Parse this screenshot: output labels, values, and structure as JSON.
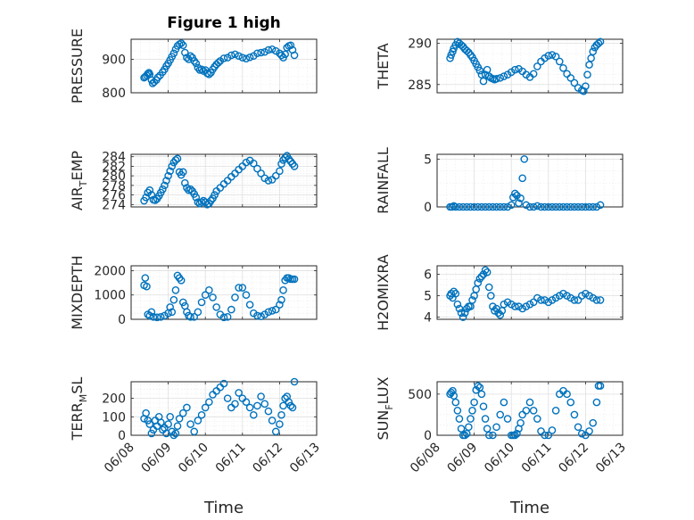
{
  "figure": {
    "title": "Figure 1 high",
    "x_axis_label": "Time",
    "marker_color": "#0072bd",
    "x_tick_labels": [
      "06/08",
      "06/09",
      "06/10",
      "06/11",
      "06/12",
      "06/13"
    ]
  },
  "chart_data": [
    {
      "id": "pressure",
      "type": "scatter",
      "title": "Figure 1 high",
      "ylabel": "PRESSURE",
      "ylabel_sub": "",
      "xlim": [
        0,
        5
      ],
      "ylim": [
        800,
        960
      ],
      "yticks": [
        800,
        900
      ],
      "grid": true,
      "x": [
        0.35,
        0.38,
        0.42,
        0.45,
        0.48,
        0.5,
        0.55,
        0.58,
        0.62,
        0.68,
        0.72,
        0.78,
        0.85,
        0.9,
        0.95,
        1.0,
        1.05,
        1.1,
        1.15,
        1.2,
        1.25,
        1.3,
        1.35,
        1.4,
        1.45,
        1.5,
        1.55,
        1.6,
        1.65,
        1.7,
        1.75,
        1.8,
        1.85,
        1.9,
        1.95,
        2.0,
        2.05,
        2.1,
        2.15,
        2.2,
        2.25,
        2.3,
        2.35,
        2.4,
        2.5,
        2.6,
        2.7,
        2.8,
        2.9,
        3.0,
        3.1,
        3.2,
        3.3,
        3.4,
        3.5,
        3.6,
        3.7,
        3.8,
        3.9,
        4.0,
        4.05,
        4.1,
        4.15,
        4.2,
        4.25,
        4.3,
        4.35,
        4.4
      ],
      "y": [
        845,
        848,
        852,
        857,
        860,
        855,
        838,
        828,
        832,
        838,
        846,
        852,
        862,
        870,
        880,
        888,
        898,
        908,
        918,
        930,
        940,
        945,
        948,
        942,
        920,
        905,
        900,
        910,
        905,
        895,
        888,
        875,
        868,
        870,
        865,
        868,
        858,
        855,
        860,
        870,
        878,
        885,
        890,
        895,
        903,
        905,
        912,
        915,
        910,
        905,
        902,
        906,
        910,
        918,
        920,
        922,
        928,
        930,
        925,
        918,
        912,
        905,
        915,
        935,
        940,
        942,
        928,
        912
      ]
    },
    {
      "id": "theta",
      "type": "scatter",
      "title": "",
      "ylabel": "THETA",
      "ylabel_sub": "",
      "xlim": [
        0,
        5
      ],
      "ylim": [
        284,
        290.5
      ],
      "yticks": [
        285,
        290
      ],
      "grid": true,
      "x": [
        0.35,
        0.38,
        0.42,
        0.45,
        0.5,
        0.55,
        0.6,
        0.65,
        0.7,
        0.75,
        0.8,
        0.85,
        0.9,
        0.95,
        1.0,
        1.05,
        1.1,
        1.15,
        1.2,
        1.25,
        1.3,
        1.35,
        1.4,
        1.45,
        1.5,
        1.55,
        1.6,
        1.7,
        1.8,
        1.9,
        2.0,
        2.1,
        2.2,
        2.3,
        2.4,
        2.5,
        2.6,
        2.7,
        2.8,
        2.9,
        3.0,
        3.1,
        3.2,
        3.3,
        3.4,
        3.5,
        3.6,
        3.7,
        3.8,
        3.9,
        3.95,
        4.0,
        4.05,
        4.1,
        4.15,
        4.2,
        4.25,
        4.3,
        4.35,
        4.4
      ],
      "y": [
        288.2,
        288.6,
        289.0,
        289.4,
        289.8,
        290.2,
        290.0,
        289.8,
        289.6,
        289.3,
        289.1,
        288.9,
        288.6,
        288.3,
        287.9,
        287.5,
        287.1,
        286.7,
        286.2,
        285.4,
        286.2,
        286.8,
        286.0,
        285.8,
        285.7,
        285.6,
        285.7,
        285.8,
        286.0,
        286.2,
        286.5,
        286.8,
        286.9,
        286.6,
        286.2,
        285.9,
        286.3,
        287.2,
        287.8,
        288.2,
        288.5,
        288.6,
        288.4,
        287.8,
        287.0,
        286.3,
        285.8,
        285.2,
        284.6,
        284.3,
        284.2,
        284.8,
        286.2,
        287.4,
        288.2,
        289.0,
        289.5,
        289.8,
        290.0,
        290.2
      ]
    },
    {
      "id": "air_temp",
      "type": "scatter",
      "title": "",
      "ylabel": "AIR",
      "ylabel_sub": "T",
      "ylabel_suffix": "EMP",
      "xlim": [
        0,
        5
      ],
      "ylim": [
        273.5,
        284.5
      ],
      "yticks": [
        274,
        276,
        278,
        280,
        282,
        284
      ],
      "grid": true,
      "x": [
        0.35,
        0.4,
        0.45,
        0.5,
        0.55,
        0.6,
        0.65,
        0.7,
        0.75,
        0.8,
        0.85,
        0.9,
        0.95,
        1.0,
        1.05,
        1.1,
        1.15,
        1.2,
        1.25,
        1.3,
        1.35,
        1.4,
        1.45,
        1.5,
        1.55,
        1.6,
        1.65,
        1.7,
        1.75,
        1.8,
        1.85,
        1.9,
        1.95,
        2.0,
        2.05,
        2.1,
        2.15,
        2.2,
        2.25,
        2.3,
        2.4,
        2.5,
        2.6,
        2.7,
        2.8,
        2.9,
        3.0,
        3.1,
        3.2,
        3.3,
        3.4,
        3.5,
        3.6,
        3.7,
        3.8,
        3.9,
        4.0,
        4.05,
        4.1,
        4.15,
        4.2,
        4.25,
        4.3,
        4.35,
        4.4
      ],
      "y": [
        274.8,
        275.5,
        276.5,
        277.0,
        276.0,
        275.0,
        274.9,
        275.2,
        275.8,
        276.5,
        277.2,
        278.0,
        279.0,
        280.0,
        281.0,
        282.0,
        282.8,
        283.3,
        283.6,
        280.8,
        280.2,
        280.8,
        278.5,
        277.5,
        277.0,
        277.2,
        276.8,
        276.2,
        275.5,
        274.5,
        274.2,
        274.5,
        274.8,
        274.5,
        274.0,
        274.2,
        274.8,
        275.3,
        276.0,
        276.8,
        277.5,
        278.3,
        279.0,
        279.8,
        280.5,
        281.3,
        282.0,
        282.8,
        283.2,
        282.6,
        281.5,
        280.5,
        279.5,
        279.0,
        279.2,
        280.0,
        281.0,
        282.5,
        283.3,
        283.8,
        284.2,
        283.5,
        283.0,
        282.5,
        282.0
      ]
    },
    {
      "id": "rainfall",
      "type": "scatter",
      "title": "",
      "ylabel": "RAINFALL",
      "ylabel_sub": "",
      "xlim": [
        0,
        5
      ],
      "ylim": [
        0,
        5.5
      ],
      "yticks": [
        0,
        5
      ],
      "grid": true,
      "x": [
        0.35,
        0.4,
        0.45,
        0.5,
        0.6,
        0.7,
        0.8,
        0.9,
        1.0,
        1.1,
        1.2,
        1.3,
        1.4,
        1.5,
        1.6,
        1.7,
        1.8,
        1.9,
        2.0,
        2.05,
        2.1,
        2.15,
        2.2,
        2.25,
        2.3,
        2.35,
        2.4,
        2.5,
        2.6,
        2.7,
        2.8,
        2.9,
        3.0,
        3.1,
        3.2,
        3.3,
        3.4,
        3.5,
        3.6,
        3.7,
        3.8,
        3.9,
        4.0,
        4.1,
        4.2,
        4.3,
        4.4
      ],
      "y": [
        0,
        0,
        0.1,
        0,
        0,
        0,
        0,
        0,
        0,
        0,
        0,
        0,
        0,
        0,
        0,
        0,
        0,
        0,
        0.2,
        1.0,
        1.4,
        1.2,
        0.4,
        0.9,
        3.0,
        5.0,
        0.2,
        0,
        0,
        0.1,
        0,
        0,
        0,
        0,
        0,
        0,
        0,
        0,
        0,
        0,
        0,
        0,
        0,
        0,
        0,
        0,
        0.2
      ]
    },
    {
      "id": "mixdepth",
      "type": "scatter",
      "title": "",
      "ylabel": "MIXDEPTH",
      "ylabel_sub": "",
      "xlim": [
        0,
        5
      ],
      "ylim": [
        0,
        2200
      ],
      "yticks": [
        0,
        1000,
        2000
      ],
      "grid": true,
      "x": [
        0.35,
        0.38,
        0.42,
        0.45,
        0.5,
        0.55,
        0.6,
        0.7,
        0.8,
        0.9,
        1.0,
        1.05,
        1.1,
        1.15,
        1.2,
        1.25,
        1.3,
        1.35,
        1.4,
        1.45,
        1.5,
        1.55,
        1.6,
        1.7,
        1.8,
        1.9,
        2.0,
        2.1,
        2.2,
        2.3,
        2.4,
        2.5,
        2.6,
        2.7,
        2.8,
        2.9,
        3.0,
        3.1,
        3.2,
        3.3,
        3.4,
        3.5,
        3.6,
        3.7,
        3.8,
        3.9,
        4.0,
        4.05,
        4.1,
        4.15,
        4.2,
        4.25,
        4.3,
        4.35,
        4.4
      ],
      "y": [
        1400,
        1700,
        1350,
        200,
        150,
        300,
        100,
        80,
        100,
        150,
        250,
        500,
        300,
        800,
        1200,
        1800,
        1700,
        1600,
        700,
        550,
        300,
        150,
        100,
        100,
        300,
        700,
        1000,
        1200,
        900,
        500,
        200,
        80,
        100,
        400,
        900,
        1300,
        1300,
        1000,
        600,
        250,
        150,
        120,
        200,
        300,
        350,
        400,
        600,
        800,
        1200,
        1600,
        1700,
        1700,
        1650,
        1650,
        1650
      ]
    },
    {
      "id": "h2omixra",
      "type": "scatter",
      "title": "",
      "ylabel": "H2OMIXRA",
      "ylabel_sub": "",
      "xlim": [
        0,
        5
      ],
      "ylim": [
        3.9,
        6.4
      ],
      "yticks": [
        4,
        5,
        6
      ],
      "grid": true,
      "x": [
        0.35,
        0.38,
        0.42,
        0.45,
        0.5,
        0.55,
        0.6,
        0.65,
        0.7,
        0.75,
        0.8,
        0.85,
        0.9,
        0.95,
        1.0,
        1.05,
        1.1,
        1.15,
        1.2,
        1.25,
        1.3,
        1.35,
        1.4,
        1.45,
        1.5,
        1.55,
        1.6,
        1.65,
        1.7,
        1.75,
        1.8,
        1.9,
        2.0,
        2.1,
        2.2,
        2.3,
        2.4,
        2.5,
        2.6,
        2.7,
        2.8,
        2.9,
        3.0,
        3.1,
        3.2,
        3.3,
        3.4,
        3.5,
        3.6,
        3.7,
        3.8,
        3.9,
        4.0,
        4.1,
        4.2,
        4.3,
        4.4
      ],
      "y": [
        5.0,
        5.1,
        4.9,
        5.2,
        5.1,
        4.6,
        4.4,
        4.2,
        4.0,
        4.2,
        4.4,
        4.5,
        4.5,
        4.8,
        5.0,
        5.3,
        5.6,
        5.8,
        5.9,
        6.0,
        6.2,
        6.1,
        5.4,
        5.0,
        4.5,
        4.3,
        4.4,
        4.2,
        4.1,
        4.3,
        4.6,
        4.7,
        4.6,
        4.5,
        4.5,
        4.4,
        4.5,
        4.6,
        4.7,
        4.9,
        4.8,
        4.8,
        4.7,
        4.8,
        4.9,
        5.0,
        5.1,
        5.0,
        4.9,
        4.8,
        4.8,
        5.0,
        5.1,
        5.0,
        4.9,
        4.8,
        4.8
      ]
    },
    {
      "id": "terr_msl",
      "type": "scatter",
      "title": "",
      "ylabel": "TERR",
      "ylabel_sub": "M",
      "ylabel_suffix": "SL",
      "xlim": [
        0,
        5
      ],
      "ylim": [
        0,
        290
      ],
      "yticks": [
        0,
        100,
        200
      ],
      "grid": true,
      "x": [
        0.35,
        0.4,
        0.45,
        0.5,
        0.55,
        0.6,
        0.65,
        0.7,
        0.75,
        0.8,
        0.85,
        0.9,
        0.95,
        1.0,
        1.05,
        1.1,
        1.15,
        1.2,
        1.25,
        1.3,
        1.4,
        1.5,
        1.6,
        1.7,
        1.8,
        1.9,
        2.0,
        2.1,
        2.2,
        2.3,
        2.4,
        2.5,
        2.6,
        2.7,
        2.8,
        2.9,
        3.0,
        3.1,
        3.2,
        3.3,
        3.4,
        3.5,
        3.6,
        3.7,
        3.8,
        3.9,
        4.0,
        4.05,
        4.1,
        4.15,
        4.2,
        4.25,
        4.3,
        4.35,
        4.4
      ],
      "y": [
        90,
        120,
        80,
        60,
        10,
        30,
        80,
        50,
        100,
        70,
        30,
        40,
        10,
        60,
        100,
        20,
        0,
        10,
        50,
        90,
        120,
        150,
        60,
        20,
        80,
        110,
        150,
        180,
        220,
        240,
        260,
        280,
        200,
        150,
        170,
        230,
        200,
        180,
        150,
        110,
        160,
        210,
        170,
        130,
        80,
        20,
        60,
        110,
        160,
        200,
        210,
        180,
        160,
        150,
        290
      ]
    },
    {
      "id": "sun_flux",
      "type": "scatter",
      "title": "",
      "ylabel": "SUN",
      "ylabel_sub": "F",
      "ylabel_suffix": "LUX",
      "xlim": [
        0,
        5
      ],
      "ylim": [
        0,
        650
      ],
      "yticks": [
        0,
        500
      ],
      "grid": true,
      "x": [
        0.35,
        0.38,
        0.42,
        0.45,
        0.5,
        0.55,
        0.6,
        0.65,
        0.7,
        0.75,
        0.8,
        0.85,
        0.9,
        0.95,
        1.0,
        1.05,
        1.1,
        1.15,
        1.2,
        1.25,
        1.3,
        1.35,
        1.4,
        1.5,
        1.6,
        1.7,
        1.8,
        1.9,
        2.0,
        2.05,
        2.1,
        2.15,
        2.2,
        2.25,
        2.3,
        2.4,
        2.5,
        2.6,
        2.7,
        2.8,
        2.9,
        3.0,
        3.1,
        3.2,
        3.3,
        3.4,
        3.5,
        3.6,
        3.7,
        3.8,
        3.9,
        4.0,
        4.1,
        4.2,
        4.3,
        4.35,
        4.4
      ],
      "y": [
        500,
        520,
        540,
        480,
        400,
        300,
        200,
        80,
        0,
        0,
        20,
        100,
        200,
        300,
        400,
        550,
        600,
        580,
        500,
        350,
        200,
        80,
        0,
        0,
        100,
        250,
        400,
        200,
        0,
        0,
        0,
        20,
        80,
        150,
        250,
        300,
        400,
        300,
        200,
        50,
        0,
        0,
        60,
        300,
        500,
        540,
        500,
        400,
        250,
        100,
        20,
        0,
        50,
        150,
        400,
        600,
        600
      ]
    }
  ]
}
